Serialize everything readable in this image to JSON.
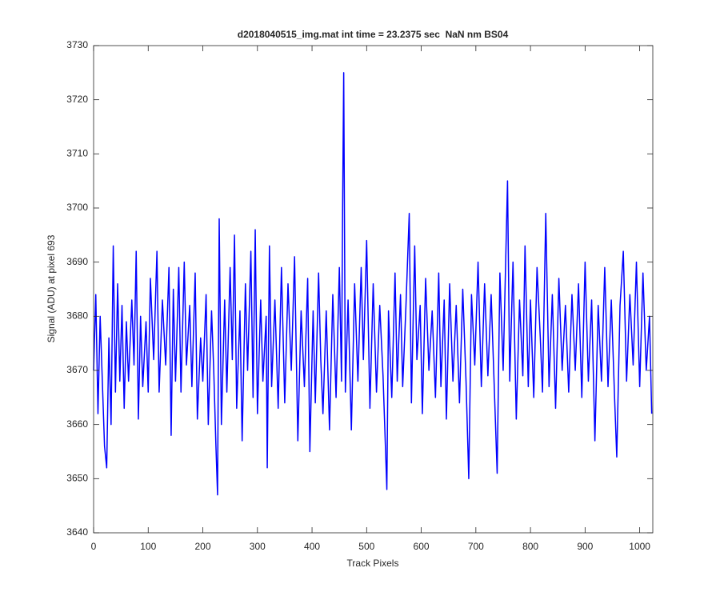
{
  "chart_data": {
    "type": "line",
    "title": "d2018040515_img.mat int time = 23.2375 sec  NaN nm BS04",
    "xlabel": "Track Pixels",
    "ylabel": "Signal (ADU) at pixel 693",
    "color": "#0000ff",
    "xlim": [
      0,
      1024
    ],
    "ylim": [
      3640,
      3730
    ],
    "xticks": [
      0,
      100,
      200,
      300,
      400,
      500,
      600,
      700,
      800,
      900,
      1000
    ],
    "yticks": [
      3640,
      3650,
      3660,
      3670,
      3680,
      3690,
      3700,
      3710,
      3720,
      3730
    ],
    "x": [
      0,
      4,
      8,
      12,
      16,
      20,
      24,
      28,
      32,
      36,
      40,
      44,
      48,
      52,
      56,
      60,
      64,
      70,
      74,
      78,
      82,
      86,
      90,
      96,
      100,
      104,
      110,
      116,
      120,
      126,
      132,
      138,
      142,
      146,
      150,
      156,
      160,
      166,
      170,
      176,
      180,
      186,
      190,
      196,
      200,
      206,
      210,
      216,
      220,
      224,
      227,
      230,
      234,
      240,
      244,
      250,
      254,
      258,
      262,
      268,
      272,
      278,
      282,
      288,
      292,
      296,
      300,
      306,
      310,
      316,
      318,
      322,
      326,
      332,
      338,
      344,
      350,
      356,
      362,
      368,
      374,
      380,
      386,
      392,
      396,
      402,
      406,
      412,
      416,
      420,
      426,
      432,
      438,
      444,
      450,
      454,
      456,
      458,
      461,
      466,
      472,
      478,
      484,
      490,
      494,
      500,
      506,
      512,
      518,
      524,
      530,
      537,
      540,
      546,
      552,
      556,
      562,
      566,
      572,
      578,
      582,
      588,
      592,
      598,
      602,
      608,
      614,
      620,
      626,
      632,
      636,
      642,
      646,
      652,
      658,
      664,
      670,
      676,
      682,
      687,
      692,
      698,
      704,
      710,
      716,
      722,
      728,
      734,
      739,
      744,
      750,
      755,
      758,
      762,
      768,
      774,
      780,
      786,
      790,
      796,
      800,
      806,
      812,
      818,
      822,
      828,
      834,
      840,
      846,
      852,
      858,
      864,
      870,
      876,
      882,
      888,
      894,
      900,
      906,
      912,
      918,
      924,
      930,
      936,
      942,
      948,
      954,
      958,
      964,
      970,
      976,
      982,
      988,
      994,
      1000,
      1006,
      1012,
      1018,
      1022
    ],
    "values": [
      3670,
      3684,
      3662,
      3680,
      3668,
      3656,
      3652,
      3676,
      3660,
      3693,
      3666,
      3686,
      3668,
      3682,
      3663,
      3679,
      3668,
      3683,
      3671,
      3692,
      3661,
      3680,
      3667,
      3679,
      3666,
      3687,
      3672,
      3692,
      3666,
      3683,
      3671,
      3689,
      3658,
      3685,
      3668,
      3689,
      3666,
      3690,
      3671,
      3682,
      3667,
      3688,
      3661,
      3676,
      3668,
      3684,
      3660,
      3681,
      3670,
      3656,
      3647,
      3698,
      3660,
      3683,
      3666,
      3689,
      3672,
      3695,
      3663,
      3681,
      3657,
      3686,
      3670,
      3692,
      3665,
      3696,
      3662,
      3683,
      3668,
      3680,
      3652,
      3693,
      3667,
      3683,
      3663,
      3689,
      3664,
      3686,
      3670,
      3691,
      3657,
      3681,
      3667,
      3687,
      3655,
      3681,
      3664,
      3688,
      3672,
      3662,
      3681,
      3659,
      3684,
      3665,
      3689,
      3668,
      3700,
      3725,
      3666,
      3683,
      3659,
      3686,
      3668,
      3689,
      3672,
      3694,
      3663,
      3686,
      3666,
      3682,
      3669,
      3648,
      3681,
      3665,
      3688,
      3668,
      3684,
      3667,
      3682,
      3699,
      3664,
      3693,
      3672,
      3682,
      3662,
      3687,
      3670,
      3681,
      3665,
      3688,
      3667,
      3683,
      3661,
      3686,
      3668,
      3682,
      3664,
      3685,
      3668,
      3650,
      3684,
      3671,
      3690,
      3667,
      3686,
      3669,
      3684,
      3666,
      3651,
      3688,
      3670,
      3692,
      3705,
      3668,
      3690,
      3661,
      3683,
      3669,
      3693,
      3667,
      3683,
      3665,
      3689,
      3676,
      3666,
      3699,
      3667,
      3684,
      3663,
      3687,
      3670,
      3682,
      3666,
      3684,
      3670,
      3686,
      3665,
      3690,
      3668,
      3683,
      3657,
      3682,
      3668,
      3689,
      3667,
      3683,
      3665,
      3654,
      3682,
      3692,
      3668,
      3684,
      3671,
      3690,
      3667,
      3688,
      3670,
      3680,
      3662
    ]
  }
}
